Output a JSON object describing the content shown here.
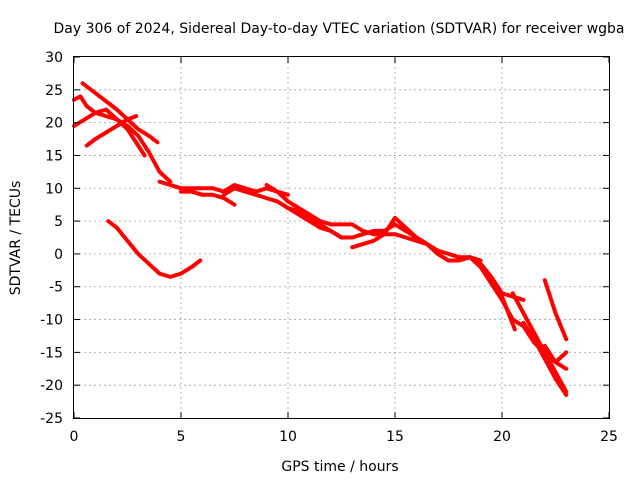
{
  "chart_data": {
    "type": "line",
    "title": "Day 306 of 2024, Sidereal Day-to-day VTEC variation (SDTVAR) for receiver wgba",
    "xlabel": "GPS time / hours",
    "ylabel": "SDTVAR / TECUs",
    "xlim": [
      0,
      25
    ],
    "ylim": [
      -25,
      30
    ],
    "xticks": [
      0,
      5,
      10,
      15,
      20,
      25
    ],
    "yticks": [
      -25,
      -20,
      -15,
      -10,
      -5,
      0,
      5,
      10,
      15,
      20,
      25,
      30
    ],
    "grid": true,
    "color": "#ff0000",
    "series": [
      {
        "name": "s1",
        "x": [
          0.0,
          0.3,
          0.6,
          1.0,
          1.5,
          2.0,
          2.5,
          3.0,
          3.5,
          4.0,
          4.5
        ],
        "y": [
          23.5,
          24.0,
          22.5,
          21.5,
          21.0,
          20.5,
          19.5,
          18.0,
          15.5,
          12.5,
          11.0
        ]
      },
      {
        "name": "s2",
        "x": [
          0.0,
          0.5,
          1.0,
          1.5,
          2.0,
          2.5,
          3.0,
          3.3
        ],
        "y": [
          19.5,
          20.5,
          21.5,
          22.0,
          20.5,
          19.0,
          16.5,
          15.0
        ]
      },
      {
        "name": "s3",
        "x": [
          0.4,
          0.8,
          1.2,
          1.6,
          2.0,
          2.5,
          3.0,
          3.5,
          3.9
        ],
        "y": [
          26.0,
          25.0,
          24.0,
          23.0,
          22.0,
          20.5,
          19.0,
          18.0,
          17.0
        ]
      },
      {
        "name": "s4",
        "x": [
          0.6,
          1.0,
          1.5,
          2.0,
          2.5,
          2.9
        ],
        "y": [
          16.5,
          17.5,
          18.5,
          19.5,
          20.5,
          21.0
        ]
      },
      {
        "name": "s5",
        "x": [
          1.6,
          2.0,
          2.5,
          3.0,
          3.5,
          4.0,
          4.5,
          5.0,
          5.5,
          5.9
        ],
        "y": [
          5.0,
          4.0,
          2.0,
          0.0,
          -1.5,
          -3.0,
          -3.5,
          -3.0,
          -2.0,
          -1.0
        ]
      },
      {
        "name": "s6",
        "x": [
          4.0,
          4.5,
          5.0,
          5.5,
          6.0,
          6.5,
          7.0,
          7.5,
          8.0,
          8.5,
          9.0,
          9.5,
          10.0
        ],
        "y": [
          11.0,
          10.5,
          10.0,
          10.0,
          10.0,
          10.0,
          9.5,
          10.5,
          10.0,
          9.5,
          10.0,
          9.5,
          9.0
        ]
      },
      {
        "name": "s7",
        "x": [
          5.0,
          5.5,
          6.0,
          6.5,
          7.0,
          7.5
        ],
        "y": [
          9.5,
          9.5,
          9.0,
          9.0,
          8.5,
          7.5
        ]
      },
      {
        "name": "s8",
        "x": [
          7.0,
          7.5,
          8.0,
          8.5,
          9.0,
          9.5,
          10.0,
          10.5,
          11.0,
          11.5,
          12.0,
          12.5
        ],
        "y": [
          9.0,
          10.0,
          9.5,
          9.0,
          8.5,
          8.0,
          7.0,
          6.5,
          5.5,
          4.5,
          3.5,
          2.5
        ]
      },
      {
        "name": "s9",
        "x": [
          9.0,
          9.5,
          10.0,
          10.5,
          11.0,
          11.5,
          12.0,
          12.5,
          13.0,
          13.5,
          14.0,
          14.5,
          15.0,
          15.5,
          16.0,
          16.5,
          17.0,
          17.5,
          18.0,
          18.5,
          19.0
        ],
        "y": [
          10.5,
          9.5,
          8.0,
          7.0,
          6.0,
          5.0,
          4.5,
          4.5,
          4.5,
          3.5,
          3.0,
          3.0,
          3.0,
          2.5,
          2.0,
          1.5,
          0.5,
          0.0,
          -0.5,
          -0.5,
          -1.0
        ]
      },
      {
        "name": "s10",
        "x": [
          10.0,
          10.5,
          11.0,
          11.5,
          12.0,
          12.5,
          13.0,
          13.5,
          14.0,
          14.5,
          15.0,
          15.5,
          16.0,
          16.5,
          17.0,
          17.5,
          18.0,
          18.5,
          19.0,
          19.5,
          20.0,
          20.5,
          21.0
        ],
        "y": [
          7.0,
          6.0,
          5.0,
          4.0,
          3.5,
          2.5,
          2.5,
          3.0,
          3.5,
          3.5,
          4.5,
          3.5,
          2.5,
          1.5,
          0.0,
          -1.0,
          -1.0,
          -0.5,
          -1.5,
          -3.5,
          -6.0,
          -6.5,
          -7.0
        ]
      },
      {
        "name": "s11",
        "x": [
          13.0,
          13.5,
          14.0,
          14.5,
          15.0,
          15.5,
          16.0,
          16.5
        ],
        "y": [
          1.0,
          1.5,
          2.0,
          3.0,
          5.5,
          4.0,
          2.5,
          1.5
        ]
      },
      {
        "name": "s12",
        "x": [
          18.5,
          19.0,
          19.5,
          20.0,
          20.5,
          21.0,
          21.5,
          22.0,
          22.5,
          23.0
        ],
        "y": [
          -0.5,
          -2.0,
          -4.5,
          -7.0,
          -10.0,
          -11.0,
          -13.5,
          -15.0,
          -16.5,
          -17.5
        ]
      },
      {
        "name": "s13",
        "x": [
          20.0,
          20.3,
          20.6
        ],
        "y": [
          -6.5,
          -9.0,
          -11.5
        ]
      },
      {
        "name": "s14",
        "x": [
          20.5,
          21.0,
          21.5,
          22.0,
          22.5,
          23.0
        ],
        "y": [
          -6.0,
          -9.0,
          -12.0,
          -15.0,
          -18.0,
          -21.0
        ]
      },
      {
        "name": "s15",
        "x": [
          21.0,
          21.5,
          22.0,
          22.5,
          23.0
        ],
        "y": [
          -10.5,
          -13.0,
          -16.0,
          -19.0,
          -21.5
        ]
      },
      {
        "name": "s16",
        "x": [
          22.0,
          22.5,
          23.0
        ],
        "y": [
          -14.0,
          -16.5,
          -15.0
        ]
      },
      {
        "name": "s17",
        "x": [
          21.5,
          22.0
        ],
        "y": [
          -13.0,
          -15.5
        ]
      },
      {
        "name": "s18",
        "x": [
          22.0,
          22.5,
          23.0
        ],
        "y": [
          -4.0,
          -9.0,
          -13.0
        ]
      }
    ]
  }
}
